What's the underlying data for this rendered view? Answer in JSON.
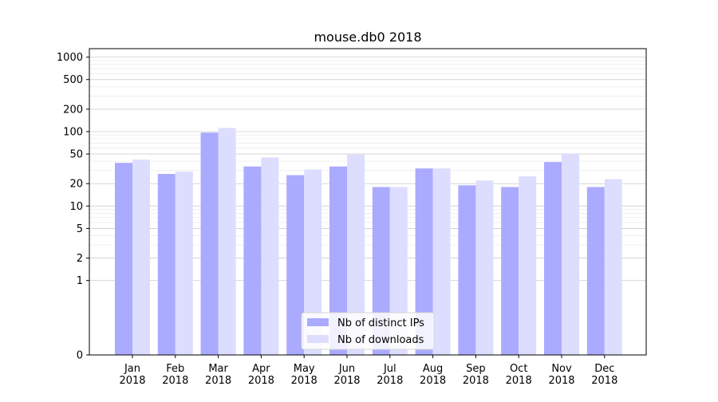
{
  "chart_data": {
    "type": "bar",
    "title": "mouse.db0 2018",
    "xlabel": "",
    "ylabel": "",
    "y_scale": "symlog",
    "ylim": [
      0,
      1300
    ],
    "y_ticks": [
      0,
      1,
      2,
      5,
      10,
      20,
      50,
      100,
      200,
      500,
      1000
    ],
    "y_tick_labels": [
      "0",
      "1",
      "2",
      "5",
      "10",
      "20",
      "50",
      "100",
      "200",
      "500",
      "1000"
    ],
    "grid": true,
    "legend_position": "lower center",
    "categories": [
      "Jan\n2018",
      "Feb\n2018",
      "Mar\n2018",
      "Apr\n2018",
      "May\n2018",
      "Jun\n2018",
      "Jul\n2018",
      "Aug\n2018",
      "Sep\n2018",
      "Oct\n2018",
      "Nov\n2018",
      "Dec\n2018"
    ],
    "category_lines": [
      [
        "Jan",
        "2018"
      ],
      [
        "Feb",
        "2018"
      ],
      [
        "Mar",
        "2018"
      ],
      [
        "Apr",
        "2018"
      ],
      [
        "May",
        "2018"
      ],
      [
        "Jun",
        "2018"
      ],
      [
        "Jul",
        "2018"
      ],
      [
        "Aug",
        "2018"
      ],
      [
        "Sep",
        "2018"
      ],
      [
        "Oct",
        "2018"
      ],
      [
        "Nov",
        "2018"
      ],
      [
        "Dec",
        "2018"
      ]
    ],
    "series": [
      {
        "name": "Nb of distinct IPs",
        "color": "#aaaaff",
        "values": [
          38,
          27,
          97,
          34,
          26,
          34,
          18,
          32,
          19,
          18,
          39,
          18
        ]
      },
      {
        "name": "Nb of downloads",
        "color": "#ddddff",
        "values": [
          42,
          29,
          112,
          45,
          31,
          49,
          18,
          32,
          22,
          25,
          51,
          23
        ]
      }
    ]
  }
}
